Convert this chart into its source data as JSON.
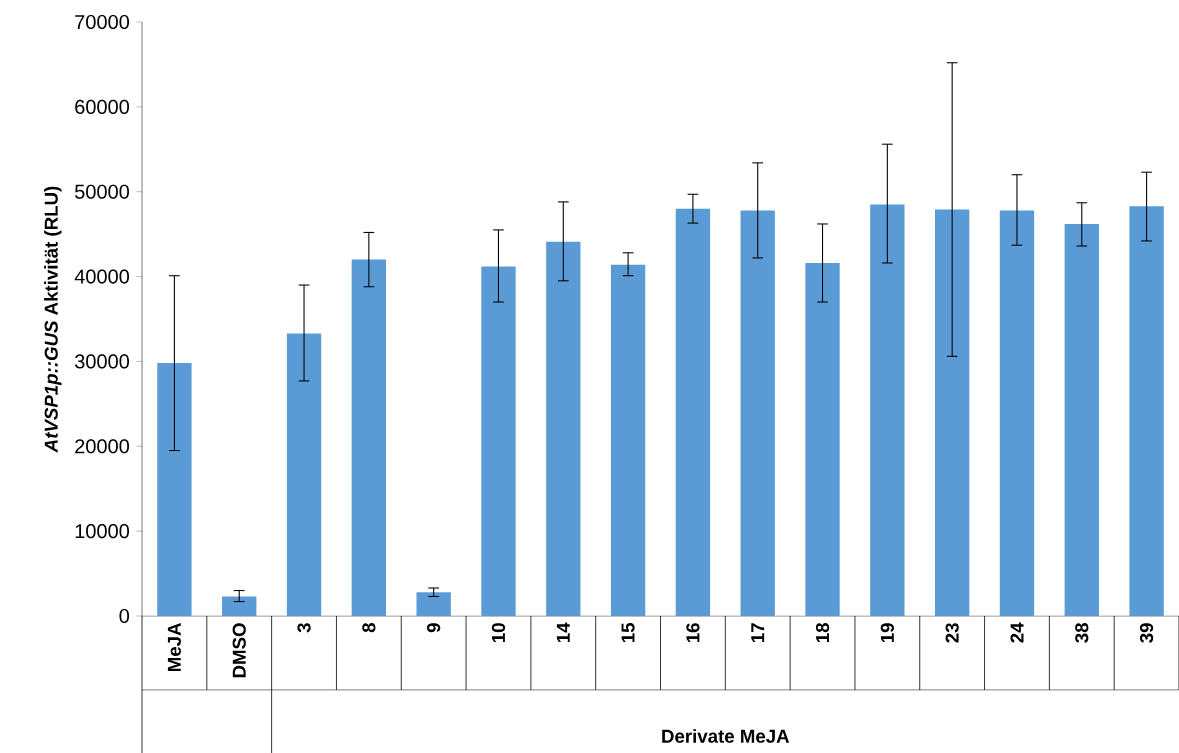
{
  "chart_data": {
    "type": "bar",
    "ylabel": "*AtVSP1p::GUS* Aktivität (RLU)",
    "categories": [
      "MeJA",
      "DMSO",
      "3",
      "8",
      "9",
      "10",
      "14",
      "15",
      "16",
      "17",
      "18",
      "19",
      "23",
      "24",
      "38",
      "39"
    ],
    "values": [
      29800,
      2300,
      33300,
      42000,
      2800,
      41200,
      44100,
      41400,
      48000,
      47800,
      41600,
      48500,
      47900,
      47800,
      46200,
      48300
    ],
    "errors": [
      [
        19500,
        40100
      ],
      [
        1700,
        3000
      ],
      [
        27700,
        39000
      ],
      [
        38800,
        45200
      ],
      [
        2300,
        3300
      ],
      [
        37000,
        45500
      ],
      [
        39500,
        48800
      ],
      [
        40100,
        42800
      ],
      [
        46300,
        49700
      ],
      [
        42200,
        53400
      ],
      [
        37000,
        46200
      ],
      [
        41600,
        55600
      ],
      [
        30600,
        65200
      ],
      [
        43700,
        52000
      ],
      [
        43600,
        48700
      ],
      [
        44200,
        52300
      ]
    ],
    "color": "#5b9bd5",
    "ylim": [
      0,
      70000
    ],
    "yticks": [
      0,
      10000,
      20000,
      30000,
      40000,
      50000,
      60000,
      70000
    ],
    "annotations": [
      "Derivate        MeJA"
    ]
  }
}
